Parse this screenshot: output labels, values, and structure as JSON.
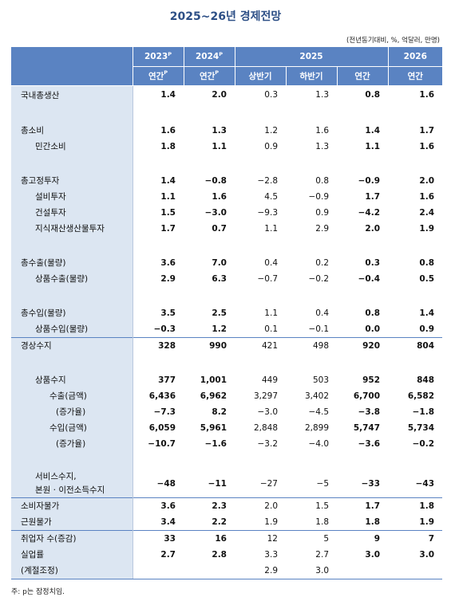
{
  "title": "2025~26년 경제전망",
  "unit_note": "(전년동기대비, %, 억달러, 만명)",
  "header": {
    "years": [
      {
        "label": "2023",
        "sup": "P"
      },
      {
        "label": "2024",
        "sup": "P"
      },
      {
        "label": "2025",
        "sup": ""
      },
      {
        "label": "2026",
        "sup": ""
      }
    ],
    "subcols": [
      {
        "label": "연간",
        "sup": "P"
      },
      {
        "label": "연간",
        "sup": "P"
      },
      {
        "label": "상반기",
        "sup": ""
      },
      {
        "label": "하반기",
        "sup": ""
      },
      {
        "label": "연간",
        "sup": ""
      },
      {
        "label": "연간",
        "sup": ""
      }
    ]
  },
  "rows": [
    {
      "label": "국내총생산",
      "values": [
        "1.4",
        "2.0",
        "0.3",
        "1.3",
        "0.8",
        "1.6"
      ]
    },
    {
      "label": "총소비",
      "values": [
        "1.6",
        "1.3",
        "1.2",
        "1.6",
        "1.4",
        "1.7"
      ]
    },
    {
      "label": "민간소비",
      "values": [
        "1.8",
        "1.1",
        "0.9",
        "1.3",
        "1.1",
        "1.6"
      ]
    },
    {
      "label": "총고정투자",
      "values": [
        "1.4",
        "−0.8",
        "−2.8",
        "0.8",
        "−0.9",
        "2.0"
      ]
    },
    {
      "label": "설비투자",
      "values": [
        "1.1",
        "1.6",
        "4.5",
        "−0.9",
        "1.7",
        "1.6"
      ]
    },
    {
      "label": "건설투자",
      "values": [
        "1.5",
        "−3.0",
        "−9.3",
        "0.9",
        "−4.2",
        "2.4"
      ]
    },
    {
      "label": "지식재산생산물투자",
      "values": [
        "1.7",
        "0.7",
        "1.1",
        "2.9",
        "2.0",
        "1.9"
      ]
    },
    {
      "label": "총수출(물량)",
      "values": [
        "3.6",
        "7.0",
        "0.4",
        "0.2",
        "0.3",
        "0.8"
      ]
    },
    {
      "label": "상품수출(물량)",
      "values": [
        "2.9",
        "6.3",
        "−0.7",
        "−0.2",
        "−0.4",
        "0.5"
      ]
    },
    {
      "label": "총수입(물량)",
      "values": [
        "3.5",
        "2.5",
        "1.1",
        "0.4",
        "0.8",
        "1.4"
      ]
    },
    {
      "label": "상품수입(물량)",
      "values": [
        "−0.3",
        "1.2",
        "0.1",
        "−0.1",
        "0.0",
        "0.9"
      ]
    },
    {
      "label": "경상수지",
      "values": [
        "328",
        "990",
        "421",
        "498",
        "920",
        "804"
      ]
    },
    {
      "label": "상품수지",
      "values": [
        "377",
        "1,001",
        "449",
        "503",
        "952",
        "848"
      ]
    },
    {
      "label": "수출(금액)",
      "values": [
        "6,436",
        "6,962",
        "3,297",
        "3,402",
        "6,700",
        "6,582"
      ]
    },
    {
      "label": "(증가율)",
      "values": [
        "−7.3",
        "8.2",
        "−3.0",
        "−4.5",
        "−3.8",
        "−1.8"
      ]
    },
    {
      "label": "수입(금액)",
      "values": [
        "6,059",
        "5,961",
        "2,848",
        "2,899",
        "5,747",
        "5,734"
      ]
    },
    {
      "label": "(증가율)",
      "values": [
        "−10.7",
        "−1.6",
        "−3.2",
        "−4.0",
        "−3.6",
        "−0.2"
      ]
    },
    {
      "label": "서비스수지,",
      "label2": "본원 · 이전소득수지",
      "values": [
        "−48",
        "−11",
        "−27",
        "−5",
        "−33",
        "−43"
      ]
    },
    {
      "label": "소비자물가",
      "values": [
        "3.6",
        "2.3",
        "2.0",
        "1.5",
        "1.7",
        "1.8"
      ]
    },
    {
      "label": "근원물가",
      "values": [
        "3.4",
        "2.2",
        "1.9",
        "1.8",
        "1.8",
        "1.9"
      ]
    },
    {
      "label": "취업자 수(증감)",
      "values": [
        "33",
        "16",
        "12",
        "5",
        "9",
        "7"
      ]
    },
    {
      "label": "실업률",
      "values": [
        "2.7",
        "2.8",
        "3.3",
        "2.7",
        "3.0",
        "3.0"
      ]
    },
    {
      "label": "(계절조정)",
      "values": [
        "",
        "",
        "2.9",
        "3.0",
        "",
        ""
      ]
    }
  ],
  "footnote": "주: p는 잠정치임."
}
